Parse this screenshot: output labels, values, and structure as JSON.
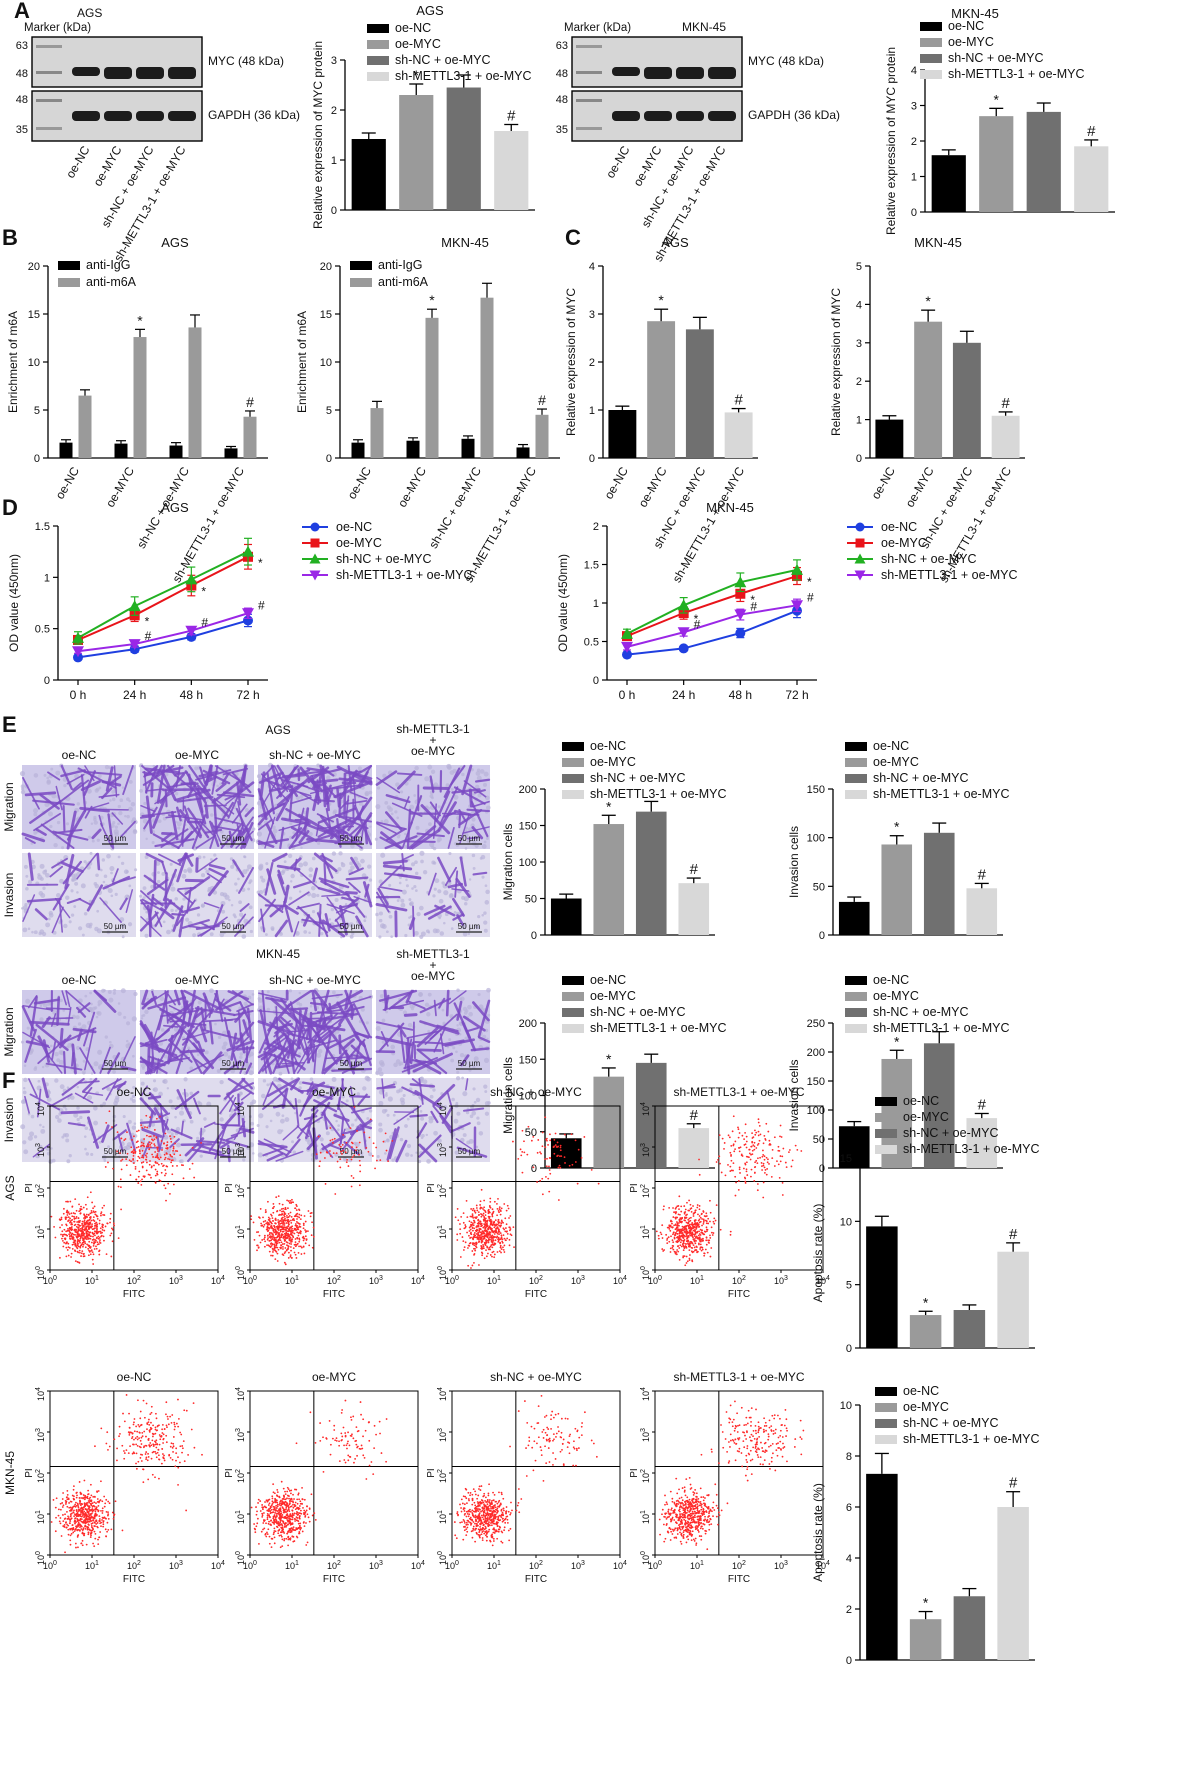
{
  "panel_letters": [
    "A",
    "B",
    "C",
    "D",
    "E",
    "F"
  ],
  "groups": [
    "oe-NC",
    "oe-MYC",
    "sh-NC + oe-MYC",
    "sh-METTL3-1 + oe-MYC"
  ],
  "colors": {
    "g1": "#000000",
    "g2": "#9a9a9a",
    "g3": "#707070",
    "g4": "#d8d8d8",
    "grid": "#000000",
    "dots": "#ff2a2a",
    "stain": "#7b4bc4"
  },
  "blots": [
    {
      "cell": "AGS",
      "marker_label": "Marker (kDa)",
      "bands": [
        {
          "label": "MYC (48 kDa)",
          "markers": [
            "63",
            "48"
          ]
        },
        {
          "label": "GAPDH (36 kDa)",
          "markers": [
            "48",
            "35"
          ]
        }
      ]
    },
    {
      "cell": "MKN-45",
      "marker_label": "Marker (kDa)",
      "bands": [
        {
          "label": "MYC (48 kDa)",
          "markers": [
            "63",
            "48"
          ]
        },
        {
          "label": "GAPDH (36 kDa)",
          "markers": [
            "48",
            "35"
          ]
        }
      ]
    }
  ],
  "chart_data": [
    {
      "id": "A-AGS",
      "type": "bar",
      "title": "AGS",
      "ylabel": "Relative expression of MYC protein",
      "ylim": [
        0,
        3
      ],
      "ticks": [
        0,
        1,
        2,
        3
      ],
      "values": [
        1.42,
        2.3,
        2.45,
        1.58
      ],
      "err": [
        0.12,
        0.22,
        0.25,
        0.13
      ],
      "marks": [
        "",
        "*",
        "",
        "#"
      ]
    },
    {
      "id": "A-MKN",
      "type": "bar",
      "title": "MKN-45",
      "ylabel": "Relative expression of MYC protein",
      "ylim": [
        0,
        4
      ],
      "ticks": [
        0,
        1,
        2,
        3,
        4
      ],
      "values": [
        1.6,
        2.7,
        2.82,
        1.85
      ],
      "err": [
        0.15,
        0.22,
        0.25,
        0.18
      ],
      "marks": [
        "",
        "*",
        "",
        "#"
      ]
    },
    {
      "id": "B-AGS",
      "type": "grouped_bar",
      "title": "AGS",
      "ylabel": "Enrichment of m6A",
      "ylim": [
        0,
        20
      ],
      "ticks": [
        0,
        5,
        10,
        15,
        20
      ],
      "series": [
        {
          "name": "anti-IgG",
          "values": [
            1.6,
            1.5,
            1.3,
            1.0
          ],
          "err": [
            0.3,
            0.3,
            0.3,
            0.2
          ]
        },
        {
          "name": "anti-m6A",
          "values": [
            6.5,
            12.6,
            13.6,
            4.3
          ],
          "err": [
            0.6,
            0.8,
            1.3,
            0.6
          ]
        }
      ],
      "marks": [
        "",
        "*",
        "",
        "#"
      ]
    },
    {
      "id": "B-MKN",
      "type": "grouped_bar",
      "title": "MKN-45",
      "ylabel": "Enrichment of m6A",
      "ylim": [
        0,
        20
      ],
      "ticks": [
        0,
        5,
        10,
        15,
        20
      ],
      "series": [
        {
          "name": "anti-IgG",
          "values": [
            1.6,
            1.8,
            2.0,
            1.1
          ],
          "err": [
            0.3,
            0.3,
            0.3,
            0.3
          ]
        },
        {
          "name": "anti-m6A",
          "values": [
            5.2,
            14.6,
            16.7,
            4.5
          ],
          "err": [
            0.7,
            0.9,
            1.5,
            0.6
          ]
        }
      ],
      "marks": [
        "",
        "*",
        "",
        "#"
      ]
    },
    {
      "id": "C-AGS",
      "type": "bar",
      "title": "AGS",
      "ylabel": "Relative expression of MYC",
      "ylim": [
        0,
        4
      ],
      "ticks": [
        0,
        1,
        2,
        3,
        4
      ],
      "values": [
        1.0,
        2.85,
        2.68,
        0.95
      ],
      "err": [
        0.08,
        0.25,
        0.25,
        0.08
      ],
      "marks": [
        "",
        "*",
        "",
        "#"
      ]
    },
    {
      "id": "C-MKN",
      "type": "bar",
      "title": "MKN-45",
      "ylabel": "Relative expression of MYC",
      "ylim": [
        0,
        5
      ],
      "ticks": [
        0,
        1,
        2,
        3,
        4,
        5
      ],
      "values": [
        1.0,
        3.55,
        3.0,
        1.1
      ],
      "err": [
        0.1,
        0.3,
        0.3,
        0.1
      ],
      "marks": [
        "",
        "*",
        "",
        "#"
      ]
    },
    {
      "id": "D-AGS",
      "type": "line",
      "title": "AGS",
      "ylabel": "OD value (450nm)",
      "ylim": [
        0,
        1.5
      ],
      "ticks": [
        0,
        0.5,
        1.0,
        1.5
      ],
      "x": [
        "0 h",
        "24 h",
        "48 h",
        "72 h"
      ],
      "series": [
        {
          "name": "oe-NC",
          "values": [
            0.22,
            0.3,
            0.42,
            0.58
          ],
          "err": [
            0.02,
            0.03,
            0.03,
            0.06
          ],
          "marks": [
            "",
            "",
            "",
            ""
          ]
        },
        {
          "name": "oe-MYC",
          "values": [
            0.39,
            0.63,
            0.92,
            1.2
          ],
          "err": [
            0.04,
            0.06,
            0.1,
            0.12
          ],
          "marks": [
            "",
            "*",
            "*",
            "*"
          ]
        },
        {
          "name": "sh-NC + oe-MYC",
          "values": [
            0.41,
            0.72,
            0.98,
            1.25
          ],
          "err": [
            0.06,
            0.09,
            0.12,
            0.13
          ],
          "marks": [
            "",
            "",
            "",
            ""
          ]
        },
        {
          "name": "sh-METTL3-1 + oe-MYC",
          "values": [
            0.28,
            0.35,
            0.48,
            0.65
          ],
          "err": [
            0.02,
            0.03,
            0.04,
            0.05
          ],
          "marks": [
            "",
            "#",
            "#",
            "#"
          ]
        }
      ]
    },
    {
      "id": "D-MKN",
      "type": "line",
      "title": "MKN-45",
      "ylabel": "OD value (450nm)",
      "ylim": [
        0,
        2.0
      ],
      "ticks": [
        0,
        0.5,
        1.0,
        1.5,
        2.0
      ],
      "x": [
        "0 h",
        "24 h",
        "48 h",
        "72 h"
      ],
      "series": [
        {
          "name": "oe-NC",
          "values": [
            0.33,
            0.41,
            0.61,
            0.9
          ],
          "err": [
            0.03,
            0.03,
            0.06,
            0.09
          ],
          "marks": [
            "",
            "",
            "",
            ""
          ]
        },
        {
          "name": "oe-MYC",
          "values": [
            0.57,
            0.87,
            1.12,
            1.35
          ],
          "err": [
            0.05,
            0.08,
            0.1,
            0.11
          ],
          "marks": [
            "",
            "*",
            "*",
            "*"
          ]
        },
        {
          "name": "sh-NC + oe-MYC",
          "values": [
            0.6,
            0.97,
            1.27,
            1.43
          ],
          "err": [
            0.06,
            0.1,
            0.12,
            0.13
          ],
          "marks": [
            "",
            "",
            "",
            ""
          ]
        },
        {
          "name": "sh-METTL3-1 + oe-MYC",
          "values": [
            0.43,
            0.62,
            0.85,
            0.97
          ],
          "err": [
            0.04,
            0.05,
            0.07,
            0.08
          ],
          "marks": [
            "",
            "#",
            "#",
            "#"
          ]
        }
      ]
    },
    {
      "id": "E-AGS-mig",
      "type": "bar",
      "ylabel": "Migration cells",
      "ylim": [
        0,
        200
      ],
      "ticks": [
        0,
        50,
        100,
        150,
        200
      ],
      "values": [
        50,
        152,
        169,
        71
      ],
      "err": [
        6,
        12,
        14,
        7
      ],
      "marks": [
        "",
        "*",
        "",
        "#"
      ]
    },
    {
      "id": "E-AGS-inv",
      "type": "bar",
      "ylabel": "Invasion cells",
      "ylim": [
        0,
        150
      ],
      "ticks": [
        0,
        50,
        100,
        150
      ],
      "values": [
        34,
        93,
        105,
        48
      ],
      "err": [
        5,
        9,
        10,
        5
      ],
      "marks": [
        "",
        "*",
        "",
        "#"
      ]
    },
    {
      "id": "E-MKN-mig",
      "type": "bar",
      "ylabel": "Migration cells",
      "ylim": [
        0,
        200
      ],
      "ticks": [
        0,
        50,
        100,
        150,
        200
      ],
      "values": [
        41,
        126,
        145,
        55
      ],
      "err": [
        6,
        12,
        12,
        6
      ],
      "marks": [
        "",
        "*",
        "",
        "#"
      ]
    },
    {
      "id": "E-MKN-inv",
      "type": "bar",
      "ylabel": "Invasion cells",
      "ylim": [
        0,
        250
      ],
      "ticks": [
        0,
        50,
        100,
        150,
        200,
        250
      ],
      "values": [
        72,
        188,
        215,
        86
      ],
      "err": [
        8,
        15,
        20,
        8
      ],
      "marks": [
        "",
        "*",
        "",
        "#"
      ]
    },
    {
      "id": "F-AGS",
      "type": "bar",
      "ylabel": "Apoptosis rate (%)",
      "ylim": [
        0,
        15
      ],
      "ticks": [
        0,
        5,
        10,
        15
      ],
      "values": [
        9.6,
        2.6,
        3.0,
        7.6
      ],
      "err": [
        0.8,
        0.3,
        0.4,
        0.7
      ],
      "marks": [
        "",
        "*",
        "",
        "#"
      ]
    },
    {
      "id": "F-MKN",
      "type": "bar",
      "ylabel": "Apoptosis rate (%)",
      "ylim": [
        0,
        10
      ],
      "ticks": [
        0,
        2,
        4,
        6,
        8,
        10
      ],
      "values": [
        7.3,
        1.6,
        2.5,
        6.0
      ],
      "err": [
        0.8,
        0.3,
        0.3,
        0.6
      ],
      "marks": [
        "",
        "*",
        "",
        "#"
      ]
    }
  ],
  "micro": {
    "cell_titles": [
      "AGS",
      "MKN-45"
    ],
    "col_titles": [
      "oe-NC",
      "oe-MYC",
      "sh-NC + oe-MYC"
    ],
    "col4_title": [
      "sh-METTL3-1",
      "+",
      "oe-MYC"
    ],
    "row_labels": [
      "Migration",
      "Invasion"
    ],
    "scale": "50 µm"
  },
  "flow": {
    "titles": [
      "oe-NC",
      "oe-MYC",
      "sh-NC + oe-MYC",
      "sh-METTL3-1 + oe-MYC"
    ],
    "row_labels": [
      "AGS",
      "MKN-45"
    ],
    "xlabel": "FITC",
    "ylabel": "PI",
    "ticks": [
      {
        "b": "10",
        "e": "0"
      },
      {
        "b": "10",
        "e": "1"
      },
      {
        "b": "10",
        "e": "2"
      },
      {
        "b": "10",
        "e": "3"
      },
      {
        "b": "10",
        "e": "4"
      }
    ]
  }
}
